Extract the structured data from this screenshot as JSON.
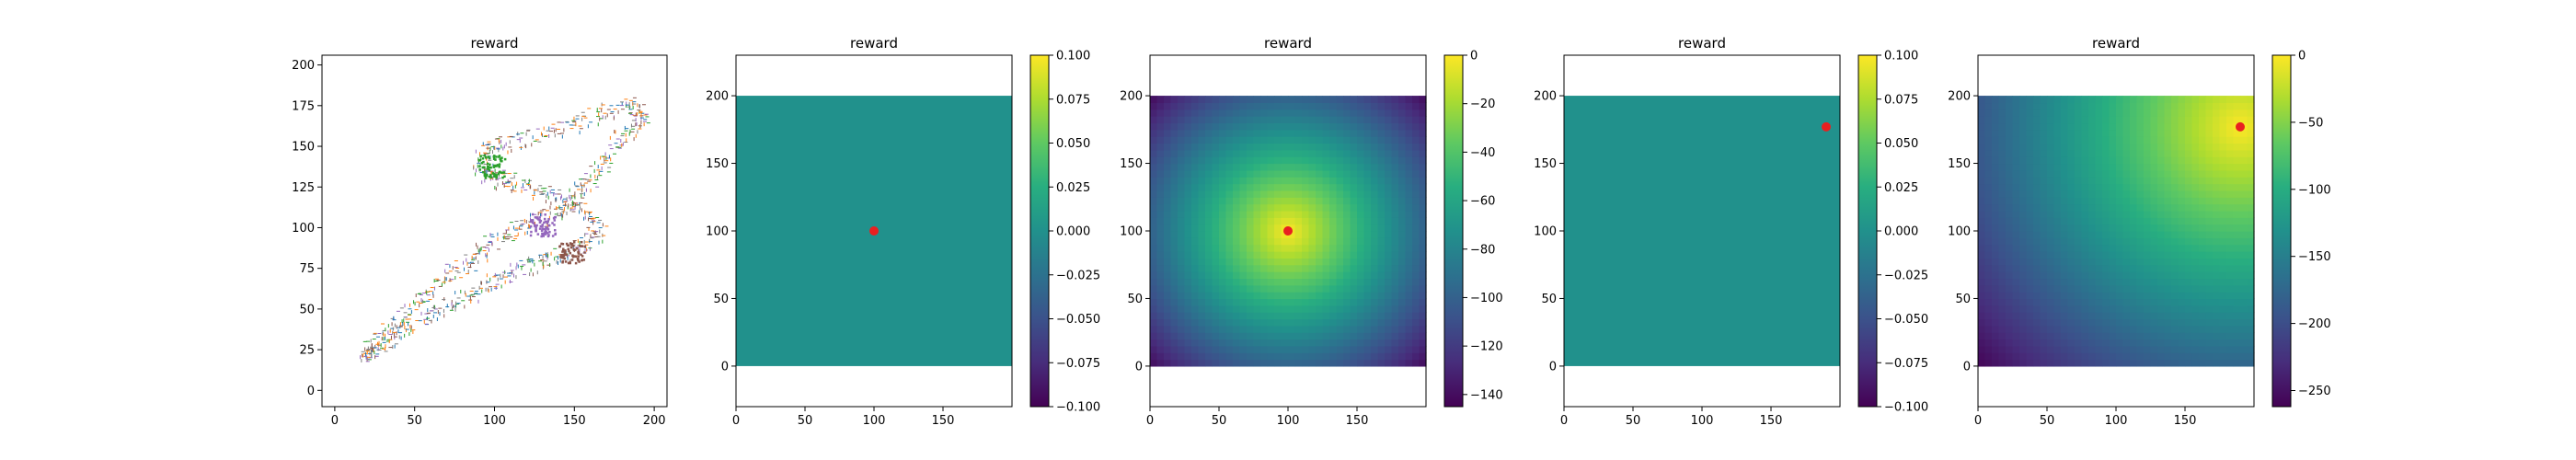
{
  "chart_data": [
    {
      "type": "scatter",
      "title": "reward",
      "xlim": [
        -8,
        208
      ],
      "ylim": [
        -10,
        206
      ],
      "x_ticks": [
        0,
        50,
        100,
        150,
        200
      ],
      "y_ticks": [
        0,
        25,
        50,
        75,
        100,
        125,
        150,
        175,
        200
      ],
      "grid": false,
      "colors": [
        "#ff7f0e",
        "#1f77b4",
        "#2ca02c",
        "#9467bd",
        "#8c564b",
        "#7f7f7f"
      ],
      "clusters": [
        {
          "x": 98,
          "y": 138,
          "note": "dense green region"
        },
        {
          "x": 130,
          "y": 102,
          "note": "purple region"
        },
        {
          "x": 148,
          "y": 85,
          "note": "brown region"
        }
      ],
      "path": [
        [
          18,
          22
        ],
        [
          28,
          32
        ],
        [
          40,
          44
        ],
        [
          55,
          58
        ],
        [
          70,
          70
        ],
        [
          85,
          80
        ],
        [
          95,
          90
        ],
        [
          110,
          98
        ],
        [
          125,
          104
        ],
        [
          140,
          112
        ],
        [
          150,
          120
        ],
        [
          160,
          130
        ],
        [
          170,
          145
        ],
        [
          182,
          160
        ],
        [
          192,
          168
        ],
        [
          186,
          175
        ],
        [
          170,
          172
        ],
        [
          150,
          165
        ],
        [
          130,
          158
        ],
        [
          110,
          152
        ],
        [
          95,
          148
        ],
        [
          90,
          140
        ],
        [
          98,
          132
        ],
        [
          110,
          128
        ],
        [
          125,
          124
        ],
        [
          140,
          118
        ],
        [
          155,
          112
        ],
        [
          165,
          100
        ],
        [
          158,
          90
        ],
        [
          145,
          84
        ],
        [
          130,
          80
        ],
        [
          115,
          74
        ],
        [
          100,
          68
        ],
        [
          85,
          60
        ],
        [
          70,
          52
        ],
        [
          55,
          44
        ],
        [
          40,
          36
        ],
        [
          25,
          26
        ],
        [
          20,
          22
        ]
      ]
    },
    {
      "type": "heatmap",
      "title": "reward",
      "xlim": [
        0,
        200
      ],
      "ylim": [
        -30,
        230
      ],
      "x_ticks": [
        0,
        50,
        100,
        150
      ],
      "y_ticks": [
        0,
        50,
        100,
        150,
        200
      ],
      "colormap": "viridis",
      "uniform_value": 0.0,
      "colorbar": {
        "min": -0.1,
        "max": 0.1,
        "ticks": [
          "0.100",
          "0.075",
          "0.050",
          "0.025",
          "0.000",
          "−0.025",
          "−0.050",
          "−0.075",
          "−0.100"
        ]
      },
      "marker": {
        "x": 100,
        "y": 100,
        "color": "#e82020"
      }
    },
    {
      "type": "heatmap",
      "title": "reward",
      "xlim": [
        0,
        200
      ],
      "ylim": [
        -30,
        230
      ],
      "x_ticks": [
        0,
        50,
        100,
        150
      ],
      "y_ticks": [
        0,
        50,
        100,
        150,
        200
      ],
      "colormap": "viridis",
      "field": "negative distance to target",
      "target": {
        "x": 100,
        "y": 100
      },
      "colorbar": {
        "min": -145,
        "max": 0,
        "ticks": [
          "0",
          "−20",
          "−40",
          "−60",
          "−80",
          "−100",
          "−120",
          "−140"
        ]
      },
      "marker": {
        "x": 100,
        "y": 100,
        "color": "#e82020"
      }
    },
    {
      "type": "heatmap",
      "title": "reward",
      "xlim": [
        0,
        200
      ],
      "ylim": [
        -30,
        230
      ],
      "x_ticks": [
        0,
        50,
        100,
        150
      ],
      "y_ticks": [
        0,
        50,
        100,
        150,
        200
      ],
      "colormap": "viridis",
      "uniform_value": 0.0,
      "colorbar": {
        "min": -0.1,
        "max": 0.1,
        "ticks": [
          "0.100",
          "0.075",
          "0.050",
          "0.025",
          "0.000",
          "−0.025",
          "−0.050",
          "−0.075",
          "−0.100"
        ]
      },
      "marker": {
        "x": 190,
        "y": 177,
        "color": "#e82020"
      }
    },
    {
      "type": "heatmap",
      "title": "reward",
      "xlim": [
        0,
        200
      ],
      "ylim": [
        -30,
        230
      ],
      "x_ticks": [
        0,
        50,
        100,
        150
      ],
      "y_ticks": [
        0,
        50,
        100,
        150,
        200
      ],
      "colormap": "viridis",
      "field": "negative distance to target",
      "target": {
        "x": 190,
        "y": 177
      },
      "colorbar": {
        "min": -262,
        "max": 0,
        "ticks": [
          "0",
          "−50",
          "−100",
          "−150",
          "−200",
          "−250"
        ]
      },
      "marker": {
        "x": 190,
        "y": 177,
        "color": "#e82020"
      }
    }
  ]
}
